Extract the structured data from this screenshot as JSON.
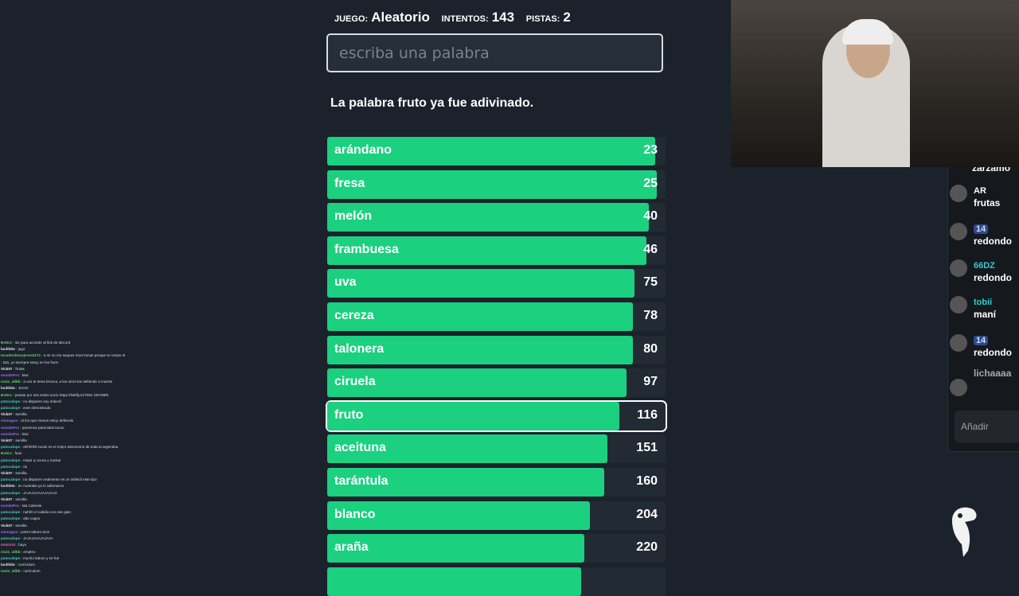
{
  "stats": {
    "game_label": "JUEGO:",
    "game": "Aleatorio",
    "attempts_label": "INTENTOS:",
    "attempts": "143",
    "hints_label": "PISTAS:",
    "hints": "2"
  },
  "input": {
    "placeholder": "escriba una palabra",
    "value": ""
  },
  "message": {
    "pre": "La palabra ",
    "word": "fruto",
    "post": " ya fue adivinado."
  },
  "colors": {
    "bar": "#1bd07f",
    "background": "#1b222c"
  },
  "guesses": [
    {
      "word": "arándano",
      "rank": "23",
      "fill": 0.97
    },
    {
      "word": "fresa",
      "rank": "25",
      "fill": 0.975
    },
    {
      "word": "melón",
      "rank": "40",
      "fill": 0.951
    },
    {
      "word": "frambuesa",
      "rank": "46",
      "fill": 0.944
    },
    {
      "word": "uva",
      "rank": "75",
      "fill": 0.908
    },
    {
      "word": "cereza",
      "rank": "78",
      "fill": 0.903
    },
    {
      "word": "talonera",
      "rank": "80",
      "fill": 0.903
    },
    {
      "word": "ciruela",
      "rank": "97",
      "fill": 0.885
    },
    {
      "word": "fruto",
      "rank": "116",
      "fill": 0.864,
      "current": true
    },
    {
      "word": "aceituna",
      "rank": "151",
      "fill": 0.828
    },
    {
      "word": "tarántula",
      "rank": "160",
      "fill": 0.819
    },
    {
      "word": "blanco",
      "rank": "204",
      "fill": 0.776
    },
    {
      "word": "araña",
      "rank": "220",
      "fill": 0.76
    },
    {
      "word": "",
      "rank": "",
      "fill": 0.751
    }
  ],
  "side_chat": {
    "items": [
      {
        "user": "",
        "text": "zarzamo"
      },
      {
        "user": "AR",
        "text": "frutas"
      },
      {
        "user": "14",
        "text": "redondo",
        "badge": true
      },
      {
        "user": "66DZ",
        "text": "redondo"
      },
      {
        "user": "tobii",
        "text": "maní"
      },
      {
        "user": "14",
        "text": "redondo",
        "badge": true
      },
      {
        "user": "",
        "text": "lichaaaa"
      }
    ],
    "placeholder": "Añadir comentario"
  },
  "stream_chat": [
    {
      "user": "BotKo",
      "color": "#6c6",
      "text": "!dc para acceder al link de discord"
    },
    {
      "user": "luchhito",
      "color": "#eee",
      "text": "jugo"
    },
    {
      "user": "tecadordemujeres9173",
      "color": "#6c6",
      "text": "a mi no me saques mod tomas porque te rompo el"
    },
    {
      "user": "",
      "color": "#eee",
      "text": "toto, yo siempre estoy en los fines"
    },
    {
      "user": "Vick07",
      "color": "#eee",
      "text": "frutas"
    },
    {
      "user": "monitoPro",
      "color": "#a6e",
      "text": "kiwi"
    },
    {
      "user": "rocio_alibb",
      "color": "#6d6",
      "text": "a vos te tenia bronca, a los otros los defiende a muerte"
    },
    {
      "user": "luchhito",
      "color": "#eee",
      "text": "JUGO"
    },
    {
      "user": "BotKo",
      "color": "#6c6",
      "text": "pasate por mis redes socio https://linkfly.to/7091 SDY9Bht"
    },
    {
      "user": "patocalope",
      "color": "#4cb",
      "text": "no disparen soy imbecil"
    },
    {
      "user": "patocalope",
      "color": "#4cb",
      "text": "ever demostrado"
    },
    {
      "user": "Vick07",
      "color": "#eee",
      "text": "semilla"
    },
    {
      "user": "sismagoo",
      "color": "#a6e",
      "text": "al los que menos estoy defiendo"
    },
    {
      "user": "monitoPro",
      "color": "#a6e",
      "text": "ponemos parecidos tocan"
    },
    {
      "user": "monitoPro",
      "color": "#a6e",
      "text": "kiwi"
    },
    {
      "user": "Vick07",
      "color": "#eee",
      "text": "semilla"
    },
    {
      "user": "patocalope",
      "color": "#4cb",
      "text": "ahhhhhh tucán es el mejor astronomo de toda la argentina"
    },
    {
      "user": "BotKo",
      "color": "#6c6",
      "text": "fase"
    },
    {
      "user": "patocalope",
      "color": "#4cb",
      "text": "mejor q cocoa y nackar"
    },
    {
      "user": "patocalope",
      "color": "#4cb",
      "text": "ok"
    },
    {
      "user": "Vick07",
      "color": "#eee",
      "text": "semilla"
    },
    {
      "user": "patocalope",
      "color": "#4cb",
      "text": "no disparen realmente es un imbécil este tipo"
    },
    {
      "user": "luchhito",
      "color": "#eee",
      "text": "en Australia ya lo adivinaron"
    },
    {
      "user": "patocalope",
      "color": "#4cb",
      "text": "JAJAJAJAJAJAJAJA"
    },
    {
      "user": "Vick07",
      "color": "#eee",
      "text": "semilla"
    },
    {
      "user": "monitoPro",
      "color": "#a6e",
      "text": "Ma Caliente"
    },
    {
      "user": "patocalope",
      "color": "#4cb",
      "text": "nahhh el cabida con ese gato"
    },
    {
      "user": "patocalope",
      "color": "#4cb",
      "text": "alto cogon"
    },
    {
      "user": "Vick07",
      "color": "#eee",
      "text": "semilla"
    },
    {
      "user": "sismagoo",
      "color": "#a6e",
      "text": "pobre laburo tomi"
    },
    {
      "user": "patocalope",
      "color": "#4cb",
      "text": "JAJAJAJAJAJAJA"
    },
    {
      "user": "mimix10",
      "color": "#e6a",
      "text": "bayu"
    },
    {
      "user": "rocio_alibb",
      "color": "#6d6",
      "text": "empleo"
    },
    {
      "user": "patocalope",
      "color": "#4cb",
      "text": "mucho laburo y se fue"
    },
    {
      "user": "luchhito",
      "color": "#eee",
      "text": "curriculum"
    },
    {
      "user": "rocio_alibb",
      "color": "#6d6",
      "text": "curriculum"
    }
  ]
}
